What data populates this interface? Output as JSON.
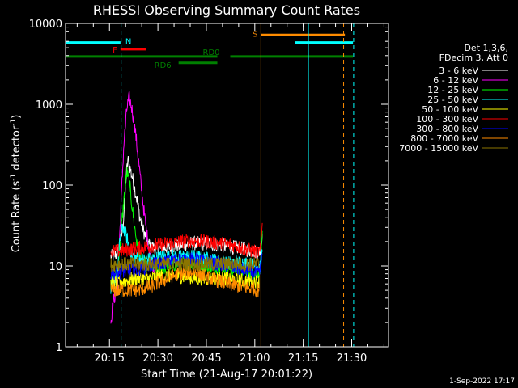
{
  "chart_data": {
    "type": "line",
    "title": "RHESSI Observing Summary Count Rates",
    "xlabel": "Start Time (21-Aug-17 20:01:22)",
    "ylabel_main": "Count Rate (s",
    "ylabel_sup1": "-1",
    "ylabel_mid": " detector",
    "ylabel_sup2": "-1",
    "ylabel_end": ")",
    "y_scale": "log",
    "ylim": [
      1,
      10000
    ],
    "xlim_minutes": [
      0,
      100
    ],
    "x_ticks": [
      {
        "label": "20:15",
        "minute": 13.6
      },
      {
        "label": "20:30",
        "minute": 28.6
      },
      {
        "label": "20:45",
        "minute": 43.6
      },
      {
        "label": "21:00",
        "minute": 58.6
      },
      {
        "label": "21:15",
        "minute": 73.6
      },
      {
        "label": "21:30",
        "minute": 88.6
      }
    ],
    "y_ticks": [
      {
        "label": "1",
        "value": 1
      },
      {
        "label": "10",
        "value": 10
      },
      {
        "label": "100",
        "value": 100
      },
      {
        "label": "1000",
        "value": 1000
      },
      {
        "label": "10000",
        "value": 10000
      }
    ],
    "legend_header": [
      "Det 1,3,6,",
      "FDecim 3, Att 0"
    ],
    "legend_placement": "right",
    "series": [
      {
        "name": "3 - 6 keV",
        "color": "#ffffff",
        "points": [
          [
            14,
            13
          ],
          [
            16,
            14
          ],
          [
            17,
            18
          ],
          [
            18,
            40
          ],
          [
            18.7,
            120
          ],
          [
            19.3,
            205
          ],
          [
            20,
            160
          ],
          [
            21,
            110
          ],
          [
            22,
            70
          ],
          [
            23,
            40
          ],
          [
            24,
            28
          ],
          [
            25,
            22
          ],
          [
            26,
            18
          ],
          [
            28,
            16
          ],
          [
            31,
            17
          ],
          [
            35,
            18
          ],
          [
            40,
            19
          ],
          [
            44,
            19
          ],
          [
            48,
            18
          ],
          [
            52,
            17
          ],
          [
            56,
            16
          ],
          [
            59,
            15
          ],
          [
            60.3,
            15
          ],
          [
            60.8,
            22
          ],
          [
            61,
            30
          ]
        ]
      },
      {
        "name": "6 - 12 keV",
        "color": "#ff00ff",
        "points": [
          [
            14,
            2
          ],
          [
            14.5,
            3
          ],
          [
            15,
            4
          ],
          [
            16,
            5
          ],
          [
            17,
            40
          ],
          [
            18,
            300
          ],
          [
            19,
            900
          ],
          [
            19.7,
            1200
          ],
          [
            20.5,
            900
          ],
          [
            21.5,
            500
          ],
          [
            22.5,
            220
          ],
          [
            23.5,
            90
          ],
          [
            24.5,
            40
          ],
          [
            25.5,
            20
          ],
          [
            26.5,
            12
          ],
          [
            27.5,
            9
          ]
        ]
      },
      {
        "name": "12 - 25 keV",
        "color": "#00ff00",
        "points": [
          [
            14,
            6
          ],
          [
            15,
            7
          ],
          [
            16,
            8
          ],
          [
            17,
            22
          ],
          [
            18,
            60
          ],
          [
            19,
            150
          ],
          [
            20,
            90
          ],
          [
            21,
            40
          ],
          [
            22,
            20
          ],
          [
            23,
            13
          ],
          [
            25,
            10
          ],
          [
            28,
            9
          ],
          [
            32,
            10
          ],
          [
            36,
            11
          ],
          [
            40,
            11
          ],
          [
            44,
            10
          ],
          [
            48,
            10
          ],
          [
            52,
            9
          ],
          [
            56,
            9
          ],
          [
            59,
            8
          ],
          [
            60.3,
            9
          ],
          [
            60.8,
            20
          ],
          [
            61,
            35
          ]
        ]
      },
      {
        "name": "25 - 50 keV",
        "color": "#00ffff",
        "points": [
          [
            14,
            5
          ],
          [
            15,
            6
          ],
          [
            16,
            8
          ],
          [
            17,
            25
          ],
          [
            18,
            30
          ],
          [
            19,
            22
          ],
          [
            20,
            16
          ],
          [
            21,
            13
          ],
          [
            23,
            12
          ],
          [
            26,
            12
          ],
          [
            30,
            13
          ],
          [
            35,
            13
          ],
          [
            40,
            13
          ],
          [
            45,
            12
          ],
          [
            50,
            11
          ],
          [
            55,
            11
          ],
          [
            59,
            10
          ],
          [
            60.3,
            10
          ],
          [
            60.8,
            14
          ],
          [
            61,
            18
          ]
        ]
      },
      {
        "name": "50 - 100 keV",
        "color": "#ffff00",
        "points": [
          [
            14,
            6
          ],
          [
            18,
            6.5
          ],
          [
            22,
            7
          ],
          [
            26,
            7
          ],
          [
            30,
            7.5
          ],
          [
            35,
            7.5
          ],
          [
            40,
            7
          ],
          [
            45,
            7
          ],
          [
            50,
            7
          ],
          [
            55,
            6.5
          ],
          [
            60,
            6.5
          ]
        ]
      },
      {
        "name": "100 - 300 keV",
        "color": "#ff0000",
        "points": [
          [
            14,
            15
          ],
          [
            17,
            15.5
          ],
          [
            20,
            16
          ],
          [
            24,
            17
          ],
          [
            28,
            18
          ],
          [
            32,
            19
          ],
          [
            36,
            20
          ],
          [
            40,
            20.5
          ],
          [
            44,
            20
          ],
          [
            48,
            19
          ],
          [
            52,
            18
          ],
          [
            56,
            16
          ],
          [
            59,
            15
          ],
          [
            60.3,
            15
          ],
          [
            60.8,
            28
          ],
          [
            61,
            45
          ]
        ]
      },
      {
        "name": "300 - 800 keV",
        "color": "#0000ff",
        "points": [
          [
            14,
            8
          ],
          [
            18,
            8.5
          ],
          [
            22,
            9
          ],
          [
            26,
            10
          ],
          [
            30,
            11
          ],
          [
            35,
            12
          ],
          [
            40,
            12
          ],
          [
            45,
            11
          ],
          [
            50,
            10
          ],
          [
            55,
            9
          ],
          [
            59,
            8
          ],
          [
            60.3,
            8.5
          ],
          [
            60.8,
            14
          ],
          [
            61,
            20
          ]
        ]
      },
      {
        "name": "800 - 7000 keV",
        "color": "#ff8c00",
        "points": [
          [
            14,
            5
          ],
          [
            18,
            5
          ],
          [
            22,
            5
          ],
          [
            26,
            5.5
          ],
          [
            30,
            6.5
          ],
          [
            35,
            8
          ],
          [
            40,
            8.5
          ],
          [
            45,
            7
          ],
          [
            50,
            6
          ],
          [
            55,
            5.5
          ],
          [
            60,
            5
          ]
        ]
      },
      {
        "name": "7000 - 15000 keV",
        "color": "#8b7500",
        "points": [
          [
            14,
            10.5
          ],
          [
            20,
            10.5
          ],
          [
            30,
            10.5
          ],
          [
            40,
            10.5
          ],
          [
            50,
            10.5
          ],
          [
            60,
            10.5
          ]
        ]
      }
    ],
    "flag_bars": [
      {
        "label": "N",
        "color": "#00ffff",
        "level": 5800,
        "segments": [
          [
            0,
            17
          ],
          [
            71,
            89
          ]
        ]
      },
      {
        "label": "F",
        "color": "#ff0000",
        "level": 4800,
        "segments": [
          [
            17,
            25
          ]
        ]
      },
      {
        "label": "S",
        "color": "#ff8c00",
        "level": 7200,
        "segments": [
          [
            60.5,
            86.5
          ]
        ]
      },
      {
        "label": "RD0",
        "color": "#008000",
        "level": 3900,
        "segments": [
          [
            0,
            47
          ],
          [
            51,
            89
          ]
        ]
      },
      {
        "label": "RD6",
        "color": "#008000",
        "level": 3250,
        "segments": [
          [
            35,
            47
          ]
        ]
      }
    ],
    "vertical_lines": [
      {
        "color": "#00ffff",
        "minute": 0,
        "style": "solid"
      },
      {
        "color": "#00ffff",
        "minute": 17.2,
        "style": "dashed"
      },
      {
        "color": "#ff8c00",
        "minute": 60.5,
        "style": "solid"
      },
      {
        "color": "#00ffff",
        "minute": 75.2,
        "style": "solid"
      },
      {
        "color": "#ff8c00",
        "minute": 86.1,
        "style": "dashed"
      },
      {
        "color": "#00ffff",
        "minute": 89.2,
        "style": "dashed"
      }
    ],
    "footer_date": "1-Sep-2022 17:17"
  }
}
